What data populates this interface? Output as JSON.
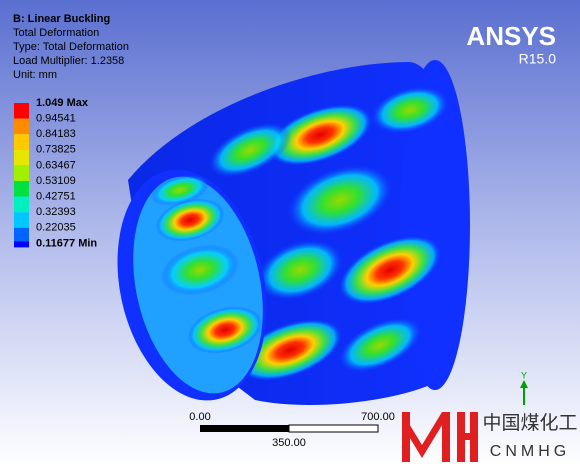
{
  "header": {
    "title": "B: Linear Buckling",
    "lines": [
      "Total Deformation",
      "Type: Total Deformation",
      "Load Multiplier: 1.2358",
      "Unit: mm"
    ]
  },
  "logo": {
    "name": "ANSYS",
    "version": "R15.0"
  },
  "legend": {
    "labels": [
      "1.049 Max",
      "0.94541",
      "0.84183",
      "0.73825",
      "0.63467",
      "0.53109",
      "0.42751",
      "0.32393",
      "0.22035",
      "0.11677 Min"
    ]
  },
  "scale_bar": {
    "start": "0.00",
    "end": "700.00",
    "middle": "350.00"
  },
  "triad": {
    "axis": "Y"
  },
  "watermark": {
    "chinese": "中国煤化工",
    "latin": "CNMHG"
  }
}
